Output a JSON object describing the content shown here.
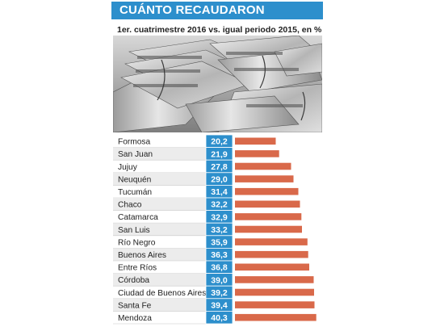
{
  "header": {
    "title": "CUÁNTO RECAUDARON",
    "subtitle": "1er. cuatrimestre 2016 vs. igual periodo 2015, en %"
  },
  "photo": {
    "subject": "banknote-stacks-image"
  },
  "colors": {
    "accent": "#2d8fcc",
    "bar": "#d9694a",
    "row_alt": "#ececec",
    "value_box": "#2d8fcc"
  },
  "chart_data": {
    "type": "bar",
    "orientation": "horizontal",
    "title": "CUÁNTO RECAUDARON",
    "subtitle": "1er. cuatrimestre 2016 vs. igual periodo 2015, en %",
    "categories": [
      "Formosa",
      "San Juan",
      "Jujuy",
      "Neuquén",
      "Tucumán",
      "Chaco",
      "Catamarca",
      "San Luis",
      "Río Negro",
      "Buenos Aires",
      "Entre Ríos",
      "Córdoba",
      "Ciudad de Buenos Aires",
      "Santa Fe",
      "Mendoza"
    ],
    "values": [
      20.2,
      21.9,
      27.8,
      29.0,
      31.4,
      32.2,
      32.9,
      33.2,
      35.9,
      36.3,
      36.8,
      39.0,
      39.2,
      39.4,
      40.3
    ],
    "value_labels": [
      "20,2",
      "21,9",
      "27,8",
      "29,0",
      "31,4",
      "32,2",
      "32,9",
      "33,2",
      "35,9",
      "36,3",
      "36,8",
      "39,0",
      "39,2",
      "39,4",
      "40,3"
    ],
    "xlim": [
      0,
      42
    ],
    "grid": false,
    "legend": "none"
  }
}
